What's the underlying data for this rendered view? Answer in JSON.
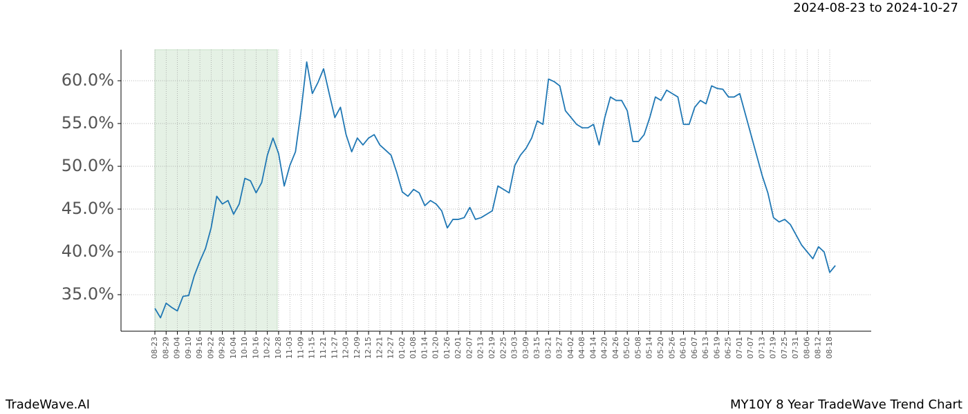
{
  "chart_data": {
    "type": "line",
    "title": "MY10Y 8 Year TradeWave Trend Chart",
    "brand": "TradeWave.AI",
    "date_range": "2024-08-23 to 2024-10-27",
    "categories": [
      "08-23",
      null,
      "08-29",
      null,
      "09-04",
      null,
      "09-10",
      null,
      "09-16",
      null,
      "09-22",
      null,
      "09-28",
      null,
      "10-04",
      null,
      "10-10",
      null,
      "10-16",
      null,
      "10-22",
      null,
      "10-28",
      null,
      "11-03",
      null,
      "11-09",
      null,
      "11-15",
      null,
      "11-21",
      null,
      "11-27",
      null,
      "12-03",
      null,
      "12-09",
      null,
      "12-15",
      null,
      "12-21",
      null,
      "12-27",
      null,
      "01-02",
      null,
      "01-08",
      null,
      "01-14",
      null,
      "01-20",
      null,
      "01-26",
      null,
      "02-01",
      null,
      "02-07",
      null,
      "02-13",
      null,
      "02-19",
      null,
      "02-25",
      null,
      "03-03",
      null,
      "03-09",
      null,
      "03-15",
      null,
      "03-21",
      null,
      "03-27",
      null,
      "04-02",
      null,
      "04-08",
      null,
      "04-14",
      null,
      "04-20",
      null,
      "04-26",
      null,
      "05-02",
      null,
      "05-08",
      null,
      "05-14",
      null,
      "05-20",
      null,
      "05-26",
      null,
      "06-01",
      null,
      "06-07",
      null,
      "06-13",
      null,
      "06-19",
      null,
      "06-25",
      null,
      "07-01",
      null,
      "07-07",
      null,
      "07-13",
      null,
      "07-19",
      null,
      "07-25",
      null,
      "07-31",
      null,
      "08-06",
      null,
      "08-12",
      null,
      "08-18",
      null
    ],
    "series": [
      {
        "color": "#1f77b4",
        "values": [
          33.4,
          32.3,
          34.0,
          33.5,
          33.1,
          34.8,
          34.9,
          37.2,
          38.9,
          40.4,
          42.8,
          46.5,
          45.6,
          46.0,
          44.4,
          45.6,
          48.6,
          48.3,
          46.9,
          48.1,
          51.3,
          53.3,
          51.5,
          47.7,
          50.1,
          51.7,
          56.5,
          62.2,
          58.5,
          59.8,
          61.4,
          58.5,
          55.7,
          56.9,
          53.7,
          51.7,
          53.3,
          52.5,
          53.3,
          53.7,
          52.5,
          51.9,
          51.3,
          49.3,
          47.0,
          46.5,
          47.3,
          46.9,
          45.4,
          46.0,
          45.6,
          44.8,
          42.8,
          43.8,
          43.8,
          44.0,
          45.2,
          43.8,
          44.0,
          44.4,
          44.8,
          47.7,
          47.3,
          46.9,
          50.1,
          51.3,
          52.1,
          53.3,
          55.3,
          54.9,
          60.2,
          59.9,
          59.4,
          56.5,
          55.7,
          54.9,
          54.5,
          54.5,
          54.9,
          52.5,
          55.7,
          58.1,
          57.7,
          57.7,
          56.5,
          52.9,
          52.9,
          53.7,
          55.7,
          58.1,
          57.7,
          58.9,
          58.5,
          58.1,
          54.9,
          54.9,
          56.9,
          57.7,
          57.3,
          59.4,
          59.1,
          59.0,
          58.1,
          58.1,
          58.5,
          56.1,
          53.7,
          51.3,
          48.9,
          46.9,
          44.0,
          43.5,
          43.8,
          43.2,
          42.0,
          40.8,
          40.0,
          39.2,
          40.6,
          40.0,
          37.6,
          38.4
        ]
      }
    ],
    "ylim": [
      30.73,
      63.63
    ],
    "yticks": [
      {
        "value": 35,
        "label": "35.0%"
      },
      {
        "value": 40,
        "label": "40.0%"
      },
      {
        "value": 45,
        "label": "45.0%"
      },
      {
        "value": 50,
        "label": "50.0%"
      },
      {
        "value": 55,
        "label": "55.0%"
      },
      {
        "value": 60,
        "label": "60.0%"
      }
    ],
    "grid": true
  }
}
